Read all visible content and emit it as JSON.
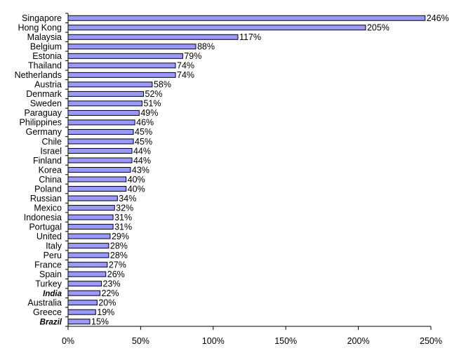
{
  "chart_data": {
    "type": "bar",
    "orientation": "horizontal",
    "title": "",
    "xlabel": "",
    "ylabel": "",
    "categories": [
      "Singapore",
      "Hong Kong",
      "Malaysia",
      "Belgium",
      "Estonia",
      "Thailand",
      "Netherlands",
      "Austria",
      "Denmark",
      "Sweden",
      "Paraguay",
      "Philippines",
      "Germany",
      "Chile",
      "Israel",
      "Finland",
      "Korea",
      "China",
      "Poland",
      "Russian",
      "Mexico",
      "Indonesia",
      "Portugal",
      "United",
      "Italy",
      "Peru",
      "France",
      "Spain",
      "Turkey",
      "India",
      "Australia",
      "Greece",
      "Brazil"
    ],
    "emphasized": [
      "India",
      "Brazil"
    ],
    "values": [
      246,
      205,
      117,
      88,
      79,
      74,
      74,
      58,
      52,
      51,
      49,
      46,
      45,
      45,
      44,
      44,
      43,
      40,
      40,
      34,
      32,
      31,
      31,
      29,
      28,
      28,
      27,
      26,
      23,
      22,
      20,
      19,
      15
    ],
    "value_labels": [
      "246%",
      "205%",
      "117%",
      "88%",
      "79%",
      "74%",
      "74%",
      "58%",
      "52%",
      "51%",
      "49%",
      "46%",
      "45%",
      "45%",
      "44%",
      "44%",
      "43%",
      "40%",
      "40%",
      "34%",
      "32%",
      "31%",
      "31%",
      "29%",
      "28%",
      "28%",
      "27%",
      "26%",
      "23%",
      "22%",
      "20%",
      "19%",
      "15%"
    ],
    "xlim": [
      0,
      250
    ],
    "xticks": [
      0,
      50,
      100,
      150,
      200,
      250
    ],
    "xtick_labels": [
      "0%",
      "50%",
      "100%",
      "150%",
      "200%",
      "250%"
    ],
    "bar_color": "#9999ff",
    "bar_edge_color": "#000000",
    "grid": false,
    "legend": "none"
  }
}
